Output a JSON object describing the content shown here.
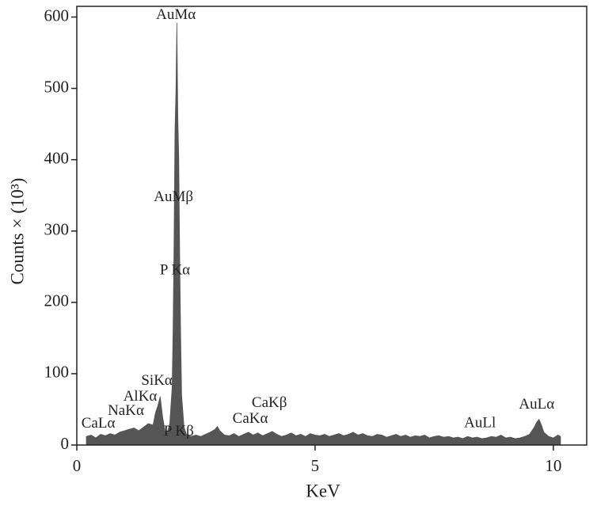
{
  "chart_data": {
    "type": "area",
    "xlabel": "KeV",
    "ylabel": "Counts × (10³)",
    "color": "#555555",
    "xlim": [
      0,
      10.7
    ],
    "ylim": [
      0,
      615
    ],
    "xticks": [
      0,
      5,
      10
    ],
    "yticks": [
      0,
      100,
      200,
      300,
      400,
      500,
      600
    ],
    "x": [
      0.2,
      0.3,
      0.4,
      0.5,
      0.6,
      0.7,
      0.8,
      0.9,
      1.0,
      1.1,
      1.2,
      1.3,
      1.4,
      1.5,
      1.6,
      1.65,
      1.7,
      1.75,
      1.8,
      1.85,
      1.9,
      1.95,
      2.0,
      2.02,
      2.04,
      2.06,
      2.08,
      2.1,
      2.12,
      2.14,
      2.16,
      2.18,
      2.2,
      2.25,
      2.3,
      2.4,
      2.5,
      2.6,
      2.7,
      2.8,
      2.9,
      2.95,
      3.0,
      3.1,
      3.2,
      3.3,
      3.4,
      3.5,
      3.6,
      3.7,
      3.8,
      3.9,
      4.0,
      4.1,
      4.2,
      4.3,
      4.4,
      4.5,
      4.6,
      4.7,
      4.8,
      4.9,
      5.0,
      5.1,
      5.2,
      5.3,
      5.4,
      5.5,
      5.6,
      5.7,
      5.8,
      5.9,
      6.0,
      6.1,
      6.2,
      6.3,
      6.4,
      6.5,
      6.6,
      6.7,
      6.8,
      6.9,
      7.0,
      7.1,
      7.2,
      7.3,
      7.4,
      7.5,
      7.6,
      7.7,
      7.8,
      7.9,
      8.0,
      8.1,
      8.2,
      8.3,
      8.4,
      8.5,
      8.6,
      8.7,
      8.8,
      8.9,
      9.0,
      9.1,
      9.2,
      9.3,
      9.4,
      9.5,
      9.6,
      9.65,
      9.7,
      9.75,
      9.8,
      9.9,
      10.0,
      10.1,
      10.15
    ],
    "values": [
      12,
      14,
      10,
      15,
      13,
      16,
      14,
      18,
      20,
      22,
      24,
      20,
      25,
      30,
      28,
      45,
      55,
      68,
      40,
      20,
      18,
      30,
      80,
      160,
      280,
      440,
      495,
      592,
      460,
      400,
      260,
      150,
      70,
      25,
      15,
      12,
      14,
      12,
      15,
      18,
      22,
      26,
      20,
      14,
      13,
      16,
      12,
      15,
      18,
      14,
      17,
      13,
      16,
      19,
      15,
      12,
      14,
      17,
      13,
      15,
      12,
      16,
      14,
      13,
      15,
      12,
      14,
      16,
      13,
      15,
      18,
      14,
      16,
      13,
      12,
      15,
      14,
      11,
      13,
      15,
      12,
      14,
      11,
      13,
      12,
      14,
      10,
      12,
      13,
      11,
      12,
      10,
      11,
      9,
      12,
      10,
      11,
      9,
      10,
      12,
      11,
      14,
      10,
      11,
      9,
      10,
      12,
      15,
      25,
      32,
      36,
      28,
      18,
      12,
      10,
      14,
      12
    ],
    "annotations": [
      {
        "text": "AuMα",
        "x": 2.08,
        "y": 602
      },
      {
        "text": "AuMβ",
        "x": 2.03,
        "y": 347
      },
      {
        "text": "P Kα",
        "x": 2.06,
        "y": 244
      },
      {
        "text": "SiKα",
        "x": 1.68,
        "y": 89
      },
      {
        "text": "AlKα",
        "x": 1.33,
        "y": 67
      },
      {
        "text": "NaKα",
        "x": 1.03,
        "y": 47
      },
      {
        "text": "CaLα",
        "x": 0.45,
        "y": 29
      },
      {
        "text": "P Kβ",
        "x": 2.14,
        "y": 18
      },
      {
        "text": "CaKα",
        "x": 3.64,
        "y": 36
      },
      {
        "text": "CaKβ",
        "x": 4.04,
        "y": 58
      },
      {
        "text": "AuLl",
        "x": 8.46,
        "y": 30
      },
      {
        "text": "AuLα",
        "x": 9.65,
        "y": 56
      }
    ]
  }
}
